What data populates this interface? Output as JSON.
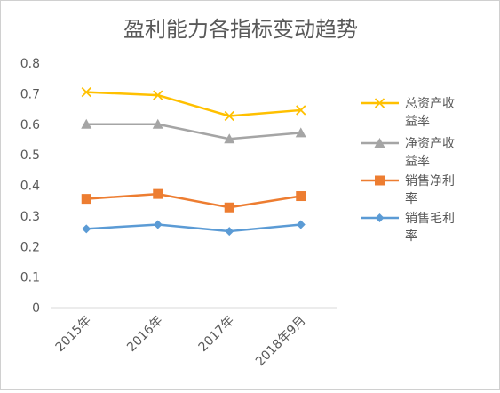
{
  "chart_data": {
    "type": "line",
    "title": "盈利能力各指标变动趋势",
    "xlabel": "",
    "ylabel": "",
    "categories": [
      "2015年",
      "2016年",
      "2017年",
      "2018年9月"
    ],
    "ylim": [
      0,
      0.8
    ],
    "yticks": [
      "0",
      "0.1",
      "0.2",
      "0.3",
      "0.4",
      "0.5",
      "0.6",
      "0.7",
      "0.8"
    ],
    "grid": false,
    "legend_position": "right",
    "series": [
      {
        "name": "总资产收益率",
        "legend_lines": [
          "总资产收",
          "益率"
        ],
        "values": [
          0.705,
          0.695,
          0.627,
          0.646
        ],
        "color": "#FFC000",
        "marker": "x"
      },
      {
        "name": "净资产收益率",
        "legend_lines": [
          "净资产收",
          "益率"
        ],
        "values": [
          0.6,
          0.6,
          0.552,
          0.572
        ],
        "color": "#A5A5A5",
        "marker": "triangle"
      },
      {
        "name": "销售净利率",
        "legend_lines": [
          "销售净利",
          "率"
        ],
        "values": [
          0.356,
          0.372,
          0.328,
          0.365
        ],
        "color": "#ED7D31",
        "marker": "square"
      },
      {
        "name": "销售毛利率",
        "legend_lines": [
          "销售毛利",
          "率"
        ],
        "values": [
          0.258,
          0.272,
          0.25,
          0.272
        ],
        "color": "#5B9BD5",
        "marker": "diamond"
      }
    ]
  }
}
